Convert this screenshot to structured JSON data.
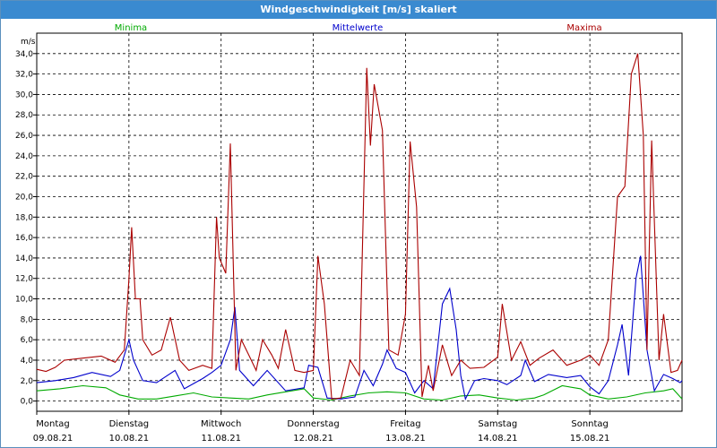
{
  "window": {
    "title": "Windgeschwindigkeit [m/s] skaliert"
  },
  "chart_data": {
    "type": "line",
    "title": "Windgeschwindigkeit [m/s] skaliert",
    "ylabel": "m/s",
    "ylim": [
      -1,
      36
    ],
    "yticks": [
      "0,0",
      "2,0",
      "4,0",
      "6,0",
      "8,0",
      "10,0",
      "12,0",
      "14,0",
      "16,0",
      "18,0",
      "20,0",
      "22,0",
      "24,0",
      "26,0",
      "28,0",
      "30,0",
      "32,0",
      "34,0"
    ],
    "xlim": [
      0,
      7
    ],
    "grid": true,
    "legend_position": "top",
    "x_day_labels": [
      {
        "day": "Montag",
        "date": "09.08.21"
      },
      {
        "day": "Dienstag",
        "date": "10.08.21"
      },
      {
        "day": "Mittwoch",
        "date": "11.08.21"
      },
      {
        "day": "Donnerstag",
        "date": "12.08.21"
      },
      {
        "day": "Freitag",
        "date": "13.08.21"
      },
      {
        "day": "Samstag",
        "date": "14.08.21"
      },
      {
        "day": "Sonntag",
        "date": "15.08.21"
      }
    ],
    "series": [
      {
        "name": "Minima",
        "color": "#00aa00",
        "points": [
          [
            0,
            1
          ],
          [
            0.25,
            1.2
          ],
          [
            0.5,
            1.5
          ],
          [
            0.75,
            1.3
          ],
          [
            0.9,
            0.6
          ],
          [
            1.1,
            0.2
          ],
          [
            1.3,
            0.2
          ],
          [
            1.5,
            0.5
          ],
          [
            1.7,
            0.8
          ],
          [
            1.9,
            0.4
          ],
          [
            2.1,
            0.3
          ],
          [
            2.3,
            0.2
          ],
          [
            2.5,
            0.6
          ],
          [
            2.7,
            0.9
          ],
          [
            2.9,
            1.2
          ],
          [
            3.0,
            0.3
          ],
          [
            3.2,
            0.1
          ],
          [
            3.4,
            0.5
          ],
          [
            3.6,
            0.8
          ],
          [
            3.8,
            0.9
          ],
          [
            4.0,
            0.8
          ],
          [
            4.2,
            0.2
          ],
          [
            4.4,
            0.1
          ],
          [
            4.6,
            0.5
          ],
          [
            4.8,
            0.6
          ],
          [
            5.0,
            0.3
          ],
          [
            5.2,
            0.1
          ],
          [
            5.4,
            0.3
          ],
          [
            5.5,
            0.6
          ],
          [
            5.7,
            1.5
          ],
          [
            5.9,
            1.2
          ],
          [
            6.0,
            0.6
          ],
          [
            6.2,
            0.2
          ],
          [
            6.4,
            0.4
          ],
          [
            6.6,
            0.8
          ],
          [
            6.8,
            1.0
          ],
          [
            6.9,
            1.2
          ],
          [
            7.0,
            0.2
          ]
        ]
      },
      {
        "name": "Mittelwerte",
        "color": "#0000cc",
        "points": [
          [
            0,
            1.8
          ],
          [
            0.2,
            2.0
          ],
          [
            0.4,
            2.3
          ],
          [
            0.6,
            2.8
          ],
          [
            0.8,
            2.4
          ],
          [
            0.9,
            3.0
          ],
          [
            1.0,
            6.0
          ],
          [
            1.05,
            4.0
          ],
          [
            1.15,
            2.0
          ],
          [
            1.3,
            1.8
          ],
          [
            1.5,
            3.0
          ],
          [
            1.6,
            1.2
          ],
          [
            1.8,
            2.2
          ],
          [
            1.9,
            2.8
          ],
          [
            2.0,
            3.5
          ],
          [
            2.1,
            6.0
          ],
          [
            2.15,
            9.2
          ],
          [
            2.2,
            3.0
          ],
          [
            2.35,
            1.5
          ],
          [
            2.5,
            3.0
          ],
          [
            2.7,
            1.0
          ],
          [
            2.9,
            1.3
          ],
          [
            2.95,
            3.5
          ],
          [
            3.05,
            3.3
          ],
          [
            3.15,
            0.3
          ],
          [
            3.3,
            0.2
          ],
          [
            3.45,
            0.4
          ],
          [
            3.55,
            3.0
          ],
          [
            3.65,
            1.5
          ],
          [
            3.75,
            3.6
          ],
          [
            3.8,
            5.0
          ],
          [
            3.9,
            3.2
          ],
          [
            4.0,
            2.8
          ],
          [
            4.1,
            0.8
          ],
          [
            4.2,
            2.0
          ],
          [
            4.3,
            1.2
          ],
          [
            4.4,
            9.5
          ],
          [
            4.48,
            11.0
          ],
          [
            4.55,
            7.0
          ],
          [
            4.6,
            2.5
          ],
          [
            4.65,
            0.2
          ],
          [
            4.75,
            2.0
          ],
          [
            4.85,
            2.2
          ],
          [
            5.0,
            2.0
          ],
          [
            5.1,
            1.6
          ],
          [
            5.25,
            2.5
          ],
          [
            5.3,
            4.0
          ],
          [
            5.4,
            1.9
          ],
          [
            5.55,
            2.6
          ],
          [
            5.75,
            2.3
          ],
          [
            5.9,
            2.5
          ],
          [
            6.0,
            1.4
          ],
          [
            6.1,
            0.7
          ],
          [
            6.2,
            2.0
          ],
          [
            6.3,
            5.5
          ],
          [
            6.35,
            7.5
          ],
          [
            6.42,
            2.5
          ],
          [
            6.5,
            12.0
          ],
          [
            6.55,
            14.2
          ],
          [
            6.62,
            5.0
          ],
          [
            6.7,
            1.0
          ],
          [
            6.8,
            2.6
          ],
          [
            6.9,
            2.2
          ],
          [
            6.98,
            1.8
          ],
          [
            7.0,
            2.0
          ]
        ]
      },
      {
        "name": "Maxima",
        "color": "#aa0000",
        "points": [
          [
            0,
            3.1
          ],
          [
            0.1,
            2.9
          ],
          [
            0.2,
            3.3
          ],
          [
            0.3,
            4.0
          ],
          [
            0.5,
            4.2
          ],
          [
            0.7,
            4.4
          ],
          [
            0.85,
            3.8
          ],
          [
            0.95,
            5.0
          ],
          [
            1.0,
            12.0
          ],
          [
            1.03,
            17.0
          ],
          [
            1.07,
            10.0
          ],
          [
            1.12,
            10.0
          ],
          [
            1.15,
            6.0
          ],
          [
            1.25,
            4.5
          ],
          [
            1.35,
            5.0
          ],
          [
            1.45,
            8.2
          ],
          [
            1.55,
            4.0
          ],
          [
            1.65,
            3.0
          ],
          [
            1.8,
            3.5
          ],
          [
            1.9,
            3.2
          ],
          [
            1.95,
            18.0
          ],
          [
            1.98,
            14.0
          ],
          [
            2.05,
            12.5
          ],
          [
            2.1,
            25.2
          ],
          [
            2.16,
            3.0
          ],
          [
            2.22,
            6.0
          ],
          [
            2.3,
            4.5
          ],
          [
            2.38,
            3.0
          ],
          [
            2.45,
            6.0
          ],
          [
            2.55,
            4.5
          ],
          [
            2.62,
            3.2
          ],
          [
            2.7,
            7.0
          ],
          [
            2.8,
            3.0
          ],
          [
            2.9,
            2.8
          ],
          [
            3.0,
            3.0
          ],
          [
            3.05,
            14.2
          ],
          [
            3.12,
            9.5
          ],
          [
            3.2,
            0.2
          ],
          [
            3.3,
            0.3
          ],
          [
            3.4,
            4.0
          ],
          [
            3.5,
            2.5
          ],
          [
            3.58,
            32.6
          ],
          [
            3.62,
            25.0
          ],
          [
            3.66,
            31.0
          ],
          [
            3.75,
            26.5
          ],
          [
            3.82,
            5.0
          ],
          [
            3.92,
            4.5
          ],
          [
            4.0,
            8.5
          ],
          [
            4.05,
            25.4
          ],
          [
            4.12,
            19.0
          ],
          [
            4.18,
            0.4
          ],
          [
            4.25,
            3.5
          ],
          [
            4.3,
            1.0
          ],
          [
            4.4,
            5.5
          ],
          [
            4.5,
            2.5
          ],
          [
            4.6,
            4.0
          ],
          [
            4.7,
            3.2
          ],
          [
            4.85,
            3.3
          ],
          [
            5.0,
            4.3
          ],
          [
            5.05,
            9.5
          ],
          [
            5.15,
            4.0
          ],
          [
            5.25,
            5.8
          ],
          [
            5.35,
            3.5
          ],
          [
            5.45,
            4.2
          ],
          [
            5.6,
            5.0
          ],
          [
            5.75,
            3.5
          ],
          [
            5.9,
            4.0
          ],
          [
            6.0,
            4.5
          ],
          [
            6.1,
            3.5
          ],
          [
            6.2,
            6.0
          ],
          [
            6.3,
            20.0
          ],
          [
            6.38,
            21.0
          ],
          [
            6.45,
            32.0
          ],
          [
            6.52,
            34.0
          ],
          [
            6.58,
            26.0
          ],
          [
            6.62,
            5.0
          ],
          [
            6.67,
            25.5
          ],
          [
            6.75,
            4.0
          ],
          [
            6.8,
            8.5
          ],
          [
            6.88,
            2.8
          ],
          [
            6.95,
            3.0
          ],
          [
            7.0,
            4.0
          ]
        ]
      }
    ]
  }
}
